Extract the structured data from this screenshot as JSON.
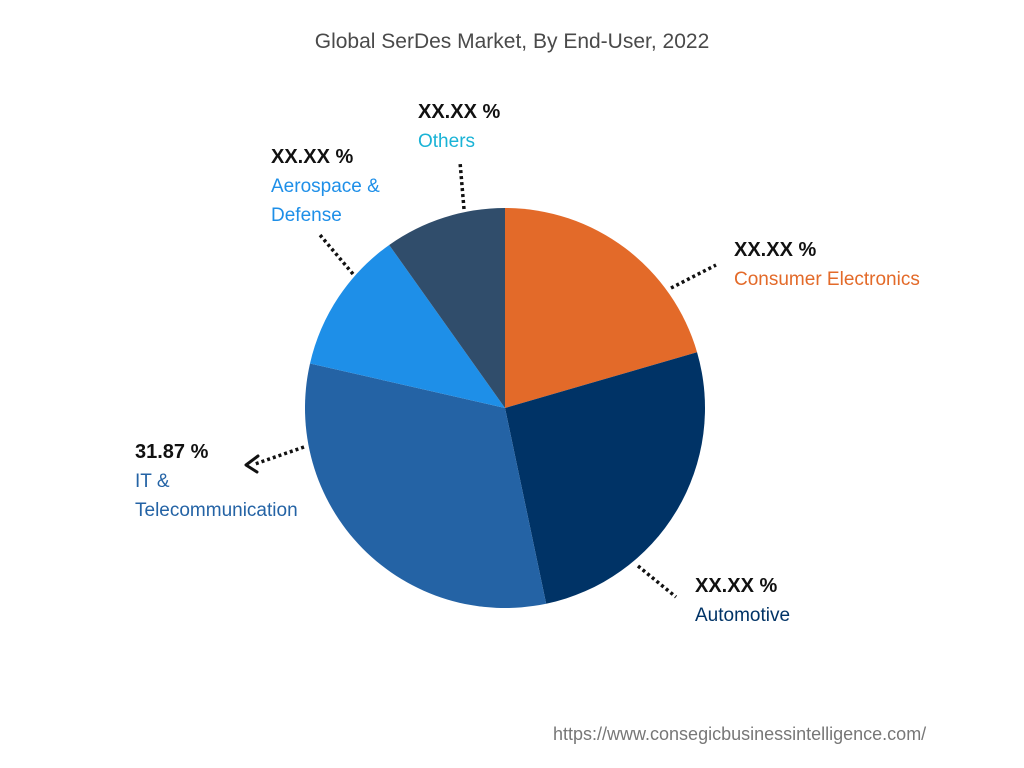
{
  "chart_data": {
    "type": "pie",
    "title": "Global SerDes Market, By End-User, 2022",
    "slices": [
      {
        "label": "Consumer Electronics",
        "value_text": "XX.XX %",
        "approx_share": 20.5,
        "color": "#e36a29"
      },
      {
        "label": "Automotive",
        "value_text": "XX.XX %",
        "approx_share": 26.2,
        "color": "#003366"
      },
      {
        "label": "IT & Telecommunication",
        "value_text": "31.87 %",
        "value": 31.87,
        "approx_share": 31.87,
        "color": "#2463a5"
      },
      {
        "label": "Aerospace & Defense",
        "value_text": "XX.XX %",
        "approx_share": 11.6,
        "color": "#1e8fe8"
      },
      {
        "label": "Others",
        "value_text": "XX.XX %",
        "approx_share": 9.83,
        "color": "#304d6b"
      }
    ]
  },
  "source": "https://www.consegicbusinessintelligence.com/"
}
